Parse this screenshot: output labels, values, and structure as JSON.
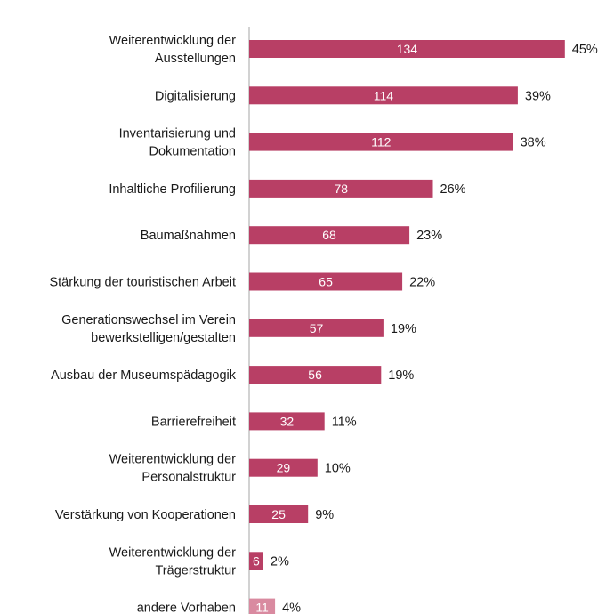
{
  "chart_data": {
    "type": "bar",
    "orientation": "horizontal",
    "title": "",
    "xlabel": "",
    "ylabel": "",
    "grid": false,
    "legend": "none",
    "bar_color": "#b83f65",
    "last_bar_color": "#d98aa0",
    "categories": [
      [
        "Weiterentwicklung der",
        "Ausstellungen"
      ],
      [
        "Digitalisierung"
      ],
      [
        "Inventarisierung und",
        "Dokumentation"
      ],
      [
        "Inhaltliche Profilierung"
      ],
      [
        "Baumaßnahmen"
      ],
      [
        "Stärkung der touristischen Arbeit"
      ],
      [
        "Generationswechsel im Verein",
        "bewerkstelligen/gestalten"
      ],
      [
        "Ausbau der Museumspädagogik"
      ],
      [
        "Barrierefreiheit"
      ],
      [
        "Weiterentwicklung der",
        "Personalstruktur"
      ],
      [
        "Verstärkung von Kooperationen"
      ],
      [
        "Weiterentwicklung der",
        "Trägerstruktur"
      ],
      [
        "andere Vorhaben"
      ]
    ],
    "values": [
      134,
      114,
      112,
      78,
      68,
      65,
      57,
      56,
      32,
      29,
      25,
      6,
      11
    ],
    "value_labels": [
      "134",
      "114",
      "112",
      "78",
      "68",
      "65",
      "57",
      "56",
      "32",
      "29",
      "25",
      "6",
      "11"
    ],
    "percent_labels": [
      "45%",
      "39%",
      "38%",
      "26%",
      "23%",
      "22%",
      "19%",
      "19%",
      "11%",
      "10%",
      "9%",
      "2%",
      "4%"
    ]
  }
}
